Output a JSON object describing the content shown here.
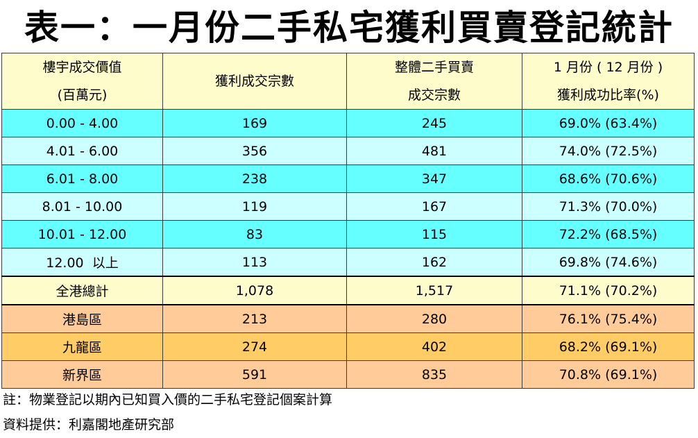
{
  "title": "表一：一月份二手私宅獲利買賣登記統計",
  "headers": {
    "col1_line1": "樓宇成交價值",
    "col1_line2": "(百萬元)",
    "col2": "獲利成交宗數",
    "col3_line1": "整體二手買賣",
    "col3_line2": "成交宗數",
    "col4_line1": "1 月份 ( 12 月份 )",
    "col4_line2": "獲利成功比率(%)"
  },
  "rows": [
    {
      "range": "0.00 - 4.00",
      "profit": "169",
      "total": "245",
      "ratio": "69.0% (63.4%)"
    },
    {
      "range": "4.01 - 6.00",
      "profit": "356",
      "total": "481",
      "ratio": "74.0% (72.5%)"
    },
    {
      "range": "6.01 - 8.00",
      "profit": "238",
      "total": "347",
      "ratio": "68.6% (70.6%)"
    },
    {
      "range": "8.01 - 10.00",
      "profit": "119",
      "total": "167",
      "ratio": "71.3% (70.0%)"
    },
    {
      "range": "10.01 - 12.00",
      "profit": "83",
      "total": "115",
      "ratio": "72.2% (68.5%)"
    },
    {
      "range": "12.00  以上",
      "profit": "113",
      "total": "162",
      "ratio": "69.8% (74.6%)"
    }
  ],
  "total_row": {
    "label": "全港總計",
    "profit": "1,078",
    "total": "1,517",
    "ratio": "71.1% (70.2%)"
  },
  "regions": [
    {
      "label": "港島區",
      "profit": "213",
      "total": "280",
      "ratio": "76.1% (75.4%)"
    },
    {
      "label": "九龍區",
      "profit": "274",
      "total": "402",
      "ratio": "68.2% (69.1%)"
    },
    {
      "label": "新界區",
      "profit": "591",
      "total": "835",
      "ratio": "70.8% (69.1%)"
    }
  ],
  "notes": {
    "note": "註：物業登記以期內已知買入價的二手私宅登記個案計算",
    "source": "資料提供：利嘉閣地產研究部"
  },
  "colors": {
    "header_bg": "#fffccc",
    "band_a": "#66ffff",
    "band_b": "#ccffff",
    "total_bg": "#fffccc",
    "region_a": "#ffcc99",
    "region_b": "#ffcc66"
  }
}
